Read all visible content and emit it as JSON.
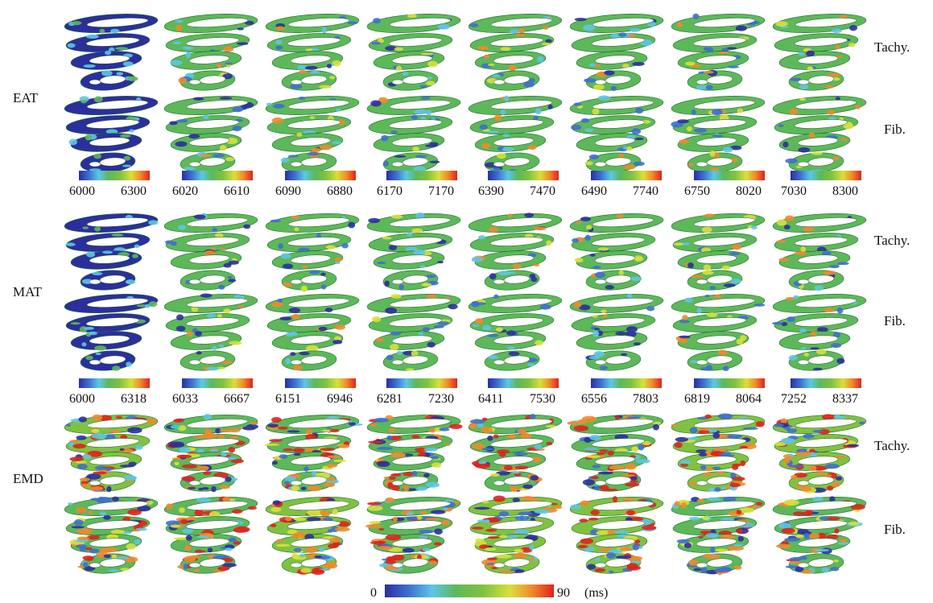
{
  "groups": [
    {
      "label": "EAT",
      "rows": [
        "Tachy.",
        "Fib."
      ],
      "colorbars": [
        {
          "min": "6000",
          "max": "6300"
        },
        {
          "min": "6020",
          "max": "6610"
        },
        {
          "min": "6090",
          "max": "6880"
        },
        {
          "min": "6170",
          "max": "7170"
        },
        {
          "min": "6390",
          "max": "7470"
        },
        {
          "min": "6490",
          "max": "7740"
        },
        {
          "min": "6750",
          "max": "8020"
        },
        {
          "min": "7030",
          "max": "8300"
        }
      ]
    },
    {
      "label": "MAT",
      "rows": [
        "Tachy.",
        "Fib."
      ],
      "colorbars": [
        {
          "min": "6000",
          "max": "6318"
        },
        {
          "min": "6033",
          "max": "6667"
        },
        {
          "min": "6151",
          "max": "6946"
        },
        {
          "min": "6281",
          "max": "7230"
        },
        {
          "min": "6411",
          "max": "7530"
        },
        {
          "min": "6556",
          "max": "7803"
        },
        {
          "min": "6819",
          "max": "8064"
        },
        {
          "min": "7252",
          "max": "8337"
        }
      ]
    },
    {
      "label": "EMD",
      "rows": [
        "Tachy.",
        "Fib."
      ]
    }
  ],
  "emd_colorbar": {
    "min": "0",
    "max": "90",
    "unit": "(ms)"
  },
  "colormap": [
    "#2b2f9e",
    "#3d6fd1",
    "#5cc7e6",
    "#5db85a",
    "#7fc241",
    "#d8e03a",
    "#f08a2a",
    "#e0221c"
  ]
}
